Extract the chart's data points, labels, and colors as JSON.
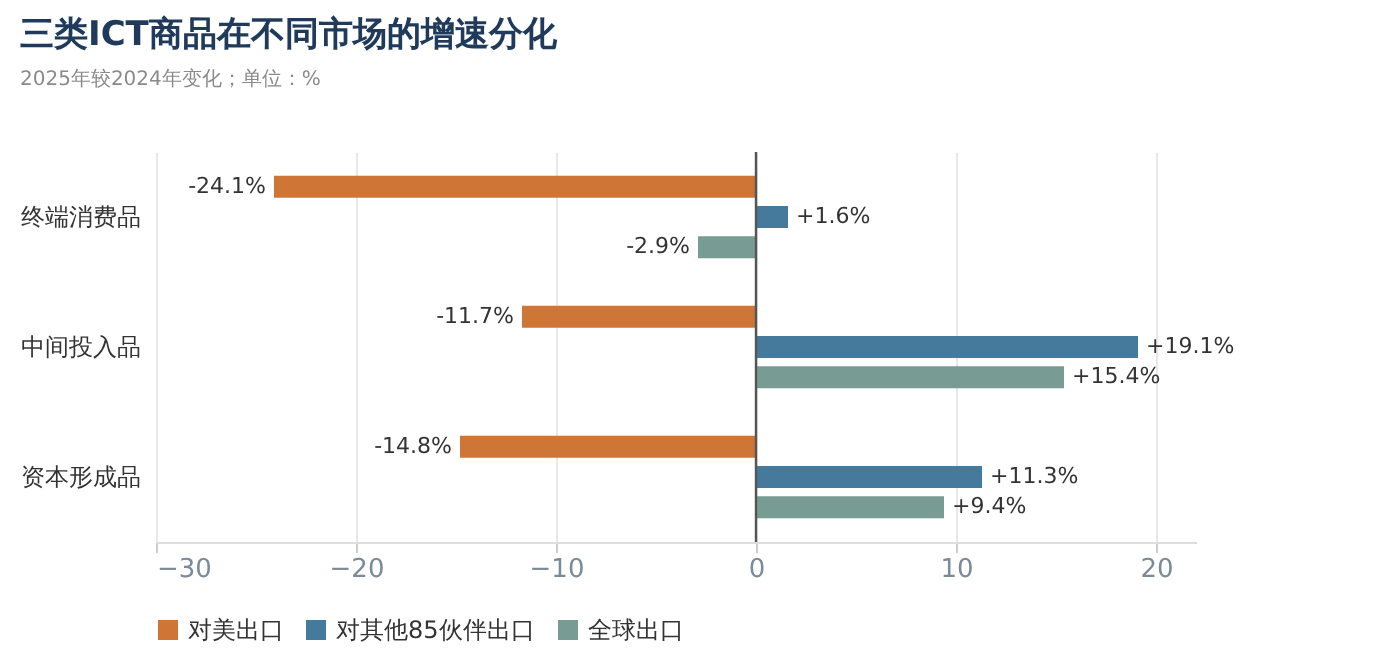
{
  "chart_data": {
    "type": "bar",
    "orientation": "horizontal",
    "title": "三类ICT商品在不同市场的增速分化",
    "subtitle": "2025年较2024年变化；单位：%",
    "categories": [
      "终端消费品",
      "中间投入品",
      "资本形成品"
    ],
    "series": [
      {
        "name": "对美出口",
        "color": "#cf7637",
        "values": [
          -24.1,
          -11.7,
          -14.8
        ],
        "value_labels": [
          "-24.1%",
          "-11.7%",
          "-14.8%"
        ]
      },
      {
        "name": "对其他85伙伴出口",
        "color": "#467a9c",
        "values": [
          1.6,
          19.1,
          11.3
        ],
        "value_labels": [
          "+1.6%",
          "+19.1%",
          "+11.3%"
        ]
      },
      {
        "name": "全球出口",
        "color": "#789c94",
        "values": [
          -2.9,
          15.4,
          9.4
        ],
        "value_labels": [
          "-2.9%",
          "+15.4%",
          "+9.4%"
        ]
      }
    ],
    "xlim": [
      -30,
      22
    ],
    "xticks": [
      -30,
      -20,
      -10,
      0,
      10,
      20
    ],
    "grid": "x",
    "legend": "bottom",
    "ref_lines": [
      {
        "axis": "x",
        "value": 0,
        "color": "#555555"
      }
    ]
  }
}
